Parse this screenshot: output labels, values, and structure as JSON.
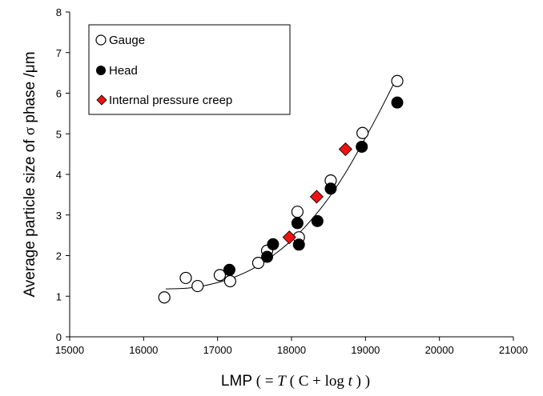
{
  "chart_data": {
    "type": "scatter",
    "xlabel": {
      "prefix": "LMP",
      "open": " ( = ",
      "T": "T",
      "mid1": " ( C + log ",
      "t": "t",
      "close": " ) )"
    },
    "ylabel": {
      "prefix": "Average particle size of ",
      "sigma": "σ",
      "suffix": " phase /μm"
    },
    "xlim": [
      15000,
      21000
    ],
    "ylim": [
      0,
      8
    ],
    "xticks": [
      "15000",
      "16000",
      "17000",
      "18000",
      "19000",
      "20000",
      "21000"
    ],
    "yticks": [
      "0",
      "1",
      "2",
      "3",
      "4",
      "5",
      "6",
      "7",
      "8"
    ],
    "grid": false,
    "legend_position": "top-left",
    "series": [
      {
        "name": "Gauge",
        "marker": "open-circle",
        "color": "#000000",
        "points": [
          [
            16280,
            0.97
          ],
          [
            16570,
            1.45
          ],
          [
            16730,
            1.25
          ],
          [
            17030,
            1.52
          ],
          [
            17170,
            1.37
          ],
          [
            17550,
            1.82
          ],
          [
            17670,
            2.12
          ],
          [
            18080,
            3.08
          ],
          [
            18100,
            2.45
          ],
          [
            18530,
            3.85
          ],
          [
            18960,
            5.02
          ],
          [
            19430,
            6.3
          ]
        ]
      },
      {
        "name": "Head",
        "marker": "filled-circle",
        "color": "#000000",
        "points": [
          [
            17160,
            1.65
          ],
          [
            17670,
            1.97
          ],
          [
            17750,
            2.28
          ],
          [
            18080,
            2.8
          ],
          [
            18100,
            2.27
          ],
          [
            18350,
            2.85
          ],
          [
            18530,
            3.65
          ],
          [
            18950,
            4.68
          ],
          [
            19430,
            5.77
          ]
        ]
      },
      {
        "name": "Internal pressure creep",
        "marker": "diamond",
        "color": "#ee1111",
        "points": [
          [
            17970,
            2.45
          ],
          [
            18340,
            3.45
          ],
          [
            18730,
            4.62
          ]
        ]
      }
    ],
    "trendline": {
      "type": "fit-curve",
      "points": [
        [
          16300,
          1.18
        ],
        [
          16600,
          1.2
        ],
        [
          16900,
          1.29
        ],
        [
          17200,
          1.45
        ],
        [
          17500,
          1.7
        ],
        [
          17800,
          2.07
        ],
        [
          18100,
          2.55
        ],
        [
          18400,
          3.17
        ],
        [
          18700,
          3.95
        ],
        [
          19000,
          4.9
        ],
        [
          19200,
          5.58
        ],
        [
          19400,
          6.3
        ]
      ]
    }
  }
}
